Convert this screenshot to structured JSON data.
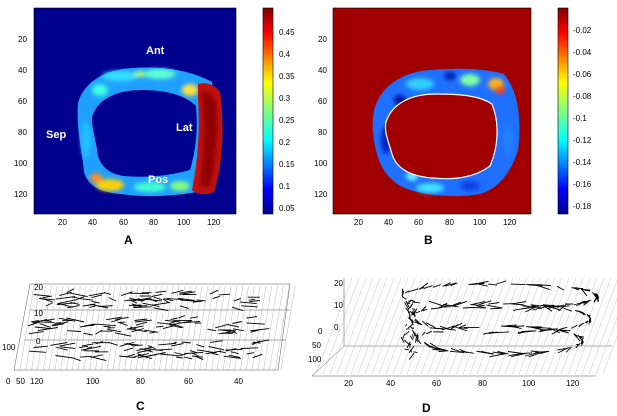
{
  "panels": {
    "A": {
      "label": "A",
      "anatomy": {
        "ant": "Ant",
        "lat": "Lat",
        "sep": "Sep",
        "pos": "Pos"
      },
      "yticks": [
        "20",
        "40",
        "60",
        "80",
        "100",
        "120"
      ],
      "xticks": [
        "20",
        "40",
        "60",
        "80",
        "100",
        "120"
      ],
      "colorbar": {
        "ticks": [
          "0.45",
          "0.4",
          "0.35",
          "0.3",
          "0.25",
          "0.2",
          "0.15",
          "0.1",
          "0.05"
        ],
        "colormap": "jet"
      }
    },
    "B": {
      "label": "B",
      "yticks": [
        "20",
        "40",
        "60",
        "80",
        "100",
        "120"
      ],
      "xticks": [
        "20",
        "40",
        "60",
        "80",
        "100",
        "120"
      ],
      "colorbar": {
        "ticks": [
          "-0.02",
          "-0.04",
          "-0.06",
          "-0.08",
          "-0.1",
          "-0.12",
          "-0.14",
          "-0.16",
          "-0.18"
        ],
        "colormap": "jet"
      }
    },
    "C": {
      "label": "C",
      "zticks": [
        "20",
        "10",
        "0"
      ],
      "xticks": [
        "120",
        "100",
        "80",
        "60",
        "40"
      ],
      "yticks": [
        "0",
        "50",
        "100"
      ]
    },
    "D": {
      "label": "D",
      "zticks": [
        "20",
        "10",
        "0"
      ],
      "xticks": [
        "20",
        "40",
        "60",
        "80",
        "100",
        "120"
      ],
      "yticks": [
        "0",
        "50",
        "100"
      ]
    }
  },
  "colors": {
    "background_map": "#00008f",
    "ring_high": "#b00000",
    "field_B": "#a00000"
  }
}
